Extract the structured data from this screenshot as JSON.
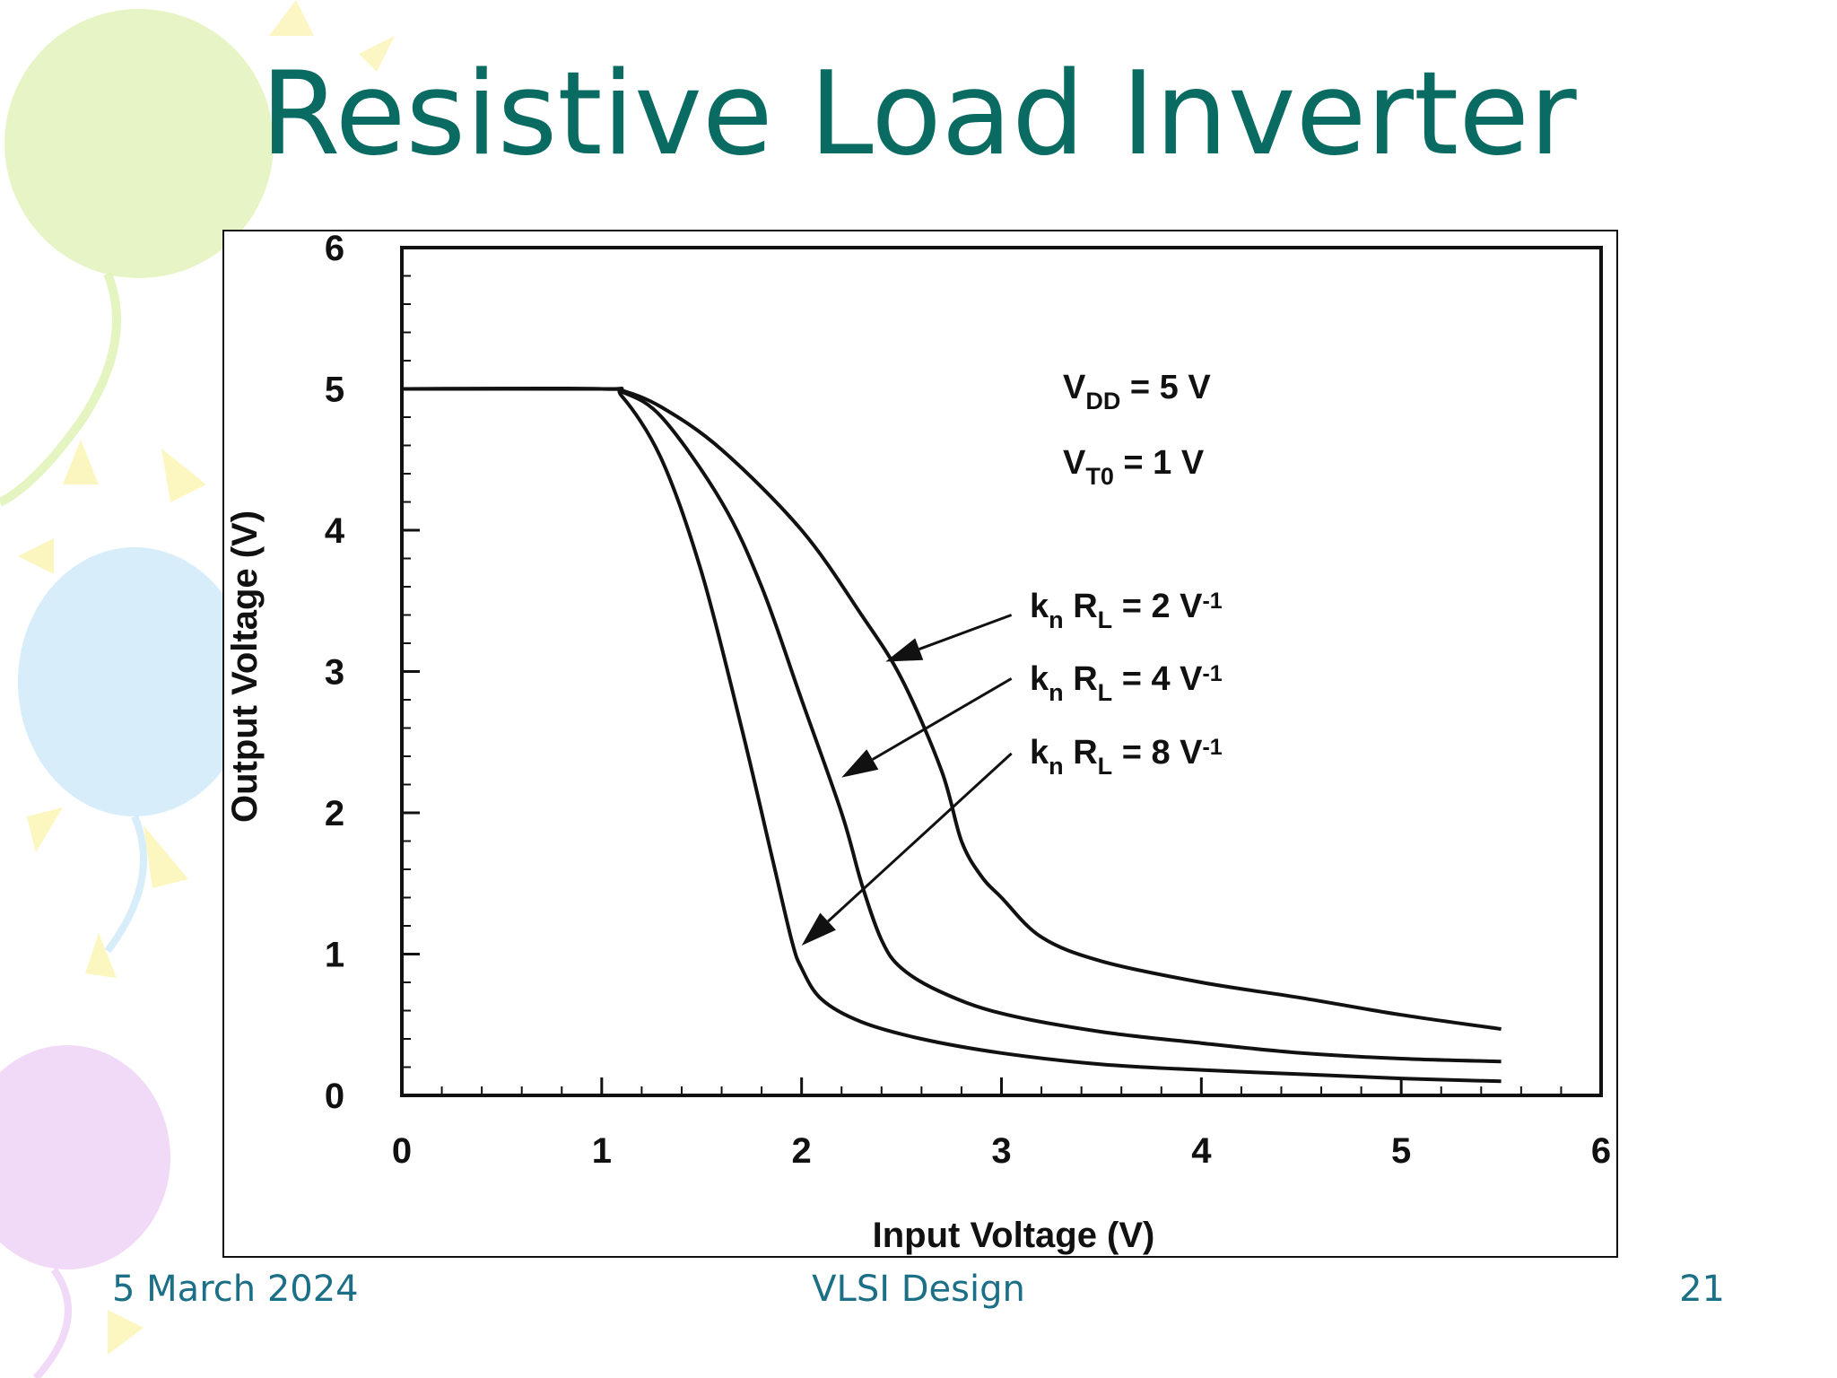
{
  "slide": {
    "title": "Resistive Load Inverter",
    "footer": {
      "date": "5 March 2024",
      "center": "VLSI Design",
      "page": "21"
    },
    "colors": {
      "title": "#0a6b63",
      "footer": "#1b6f86",
      "decor_green": "#dff2b3",
      "decor_blue": "#cde8f8",
      "decor_purple": "#efd4f6",
      "decor_yellow": "#fbf4b5"
    }
  },
  "chart_data": {
    "type": "line",
    "title": "",
    "xlabel": "Input Voltage  (V)",
    "ylabel": "Output Voltage  (V)",
    "xlim": [
      0,
      6
    ],
    "ylim": [
      0,
      6
    ],
    "xticks": [
      "0",
      "1",
      "2",
      "3",
      "4",
      "5",
      "6"
    ],
    "yticks": [
      "0",
      "1",
      "2",
      "3",
      "4",
      "5",
      "6"
    ],
    "grid": false,
    "annotations": {
      "vdd": {
        "main": "V",
        "sub": "DD",
        "rest": " = 5 V"
      },
      "vt0": {
        "main": "V",
        "sub": "T0",
        "rest": "  = 1 V"
      }
    },
    "series": [
      {
        "name": "kn RL = 2 V-1",
        "label": {
          "k": "k",
          "k_sub": "n",
          "r": " R",
          "r_sub": "L",
          "value": " = 2  V",
          "sup": "-1"
        },
        "x": [
          0,
          1.0,
          1.1,
          1.3,
          1.6,
          2.0,
          2.3,
          2.5,
          2.7,
          2.8,
          2.9,
          3.0,
          3.2,
          3.5,
          4.0,
          4.5,
          5.0,
          5.5
        ],
        "y": [
          5,
          5,
          4.99,
          4.87,
          4.57,
          4.0,
          3.4,
          2.95,
          2.3,
          1.8,
          1.55,
          1.4,
          1.12,
          0.95,
          0.8,
          0.69,
          0.57,
          0.47
        ]
      },
      {
        "name": "kn RL = 4 V-1",
        "label": {
          "k": "k",
          "k_sub": "n",
          "r": " R",
          "r_sub": "L",
          "value": " = 4  V",
          "sup": "-1"
        },
        "x": [
          0,
          1.0,
          1.1,
          1.3,
          1.6,
          1.8,
          2.0,
          2.2,
          2.3,
          2.4,
          2.5,
          2.7,
          3.0,
          3.5,
          4.0,
          4.5,
          5.0,
          5.5
        ],
        "y": [
          5,
          5,
          4.98,
          4.8,
          4.2,
          3.6,
          2.8,
          2.0,
          1.5,
          1.1,
          0.9,
          0.73,
          0.58,
          0.45,
          0.37,
          0.3,
          0.26,
          0.24
        ]
      },
      {
        "name": "kn RL = 8 V-1",
        "label": {
          "k": "k",
          "k_sub": "n",
          "r": " R",
          "r_sub": "L",
          "value": " = 8  V",
          "sup": "-1"
        },
        "x": [
          0,
          1.0,
          1.1,
          1.3,
          1.5,
          1.7,
          1.85,
          1.95,
          2.0,
          2.1,
          2.3,
          2.6,
          3.0,
          3.5,
          4.0,
          4.5,
          5.0,
          5.5
        ],
        "y": [
          5,
          5,
          4.95,
          4.5,
          3.7,
          2.6,
          1.7,
          1.1,
          0.9,
          0.68,
          0.52,
          0.4,
          0.3,
          0.22,
          0.18,
          0.15,
          0.12,
          0.1
        ]
      }
    ]
  }
}
